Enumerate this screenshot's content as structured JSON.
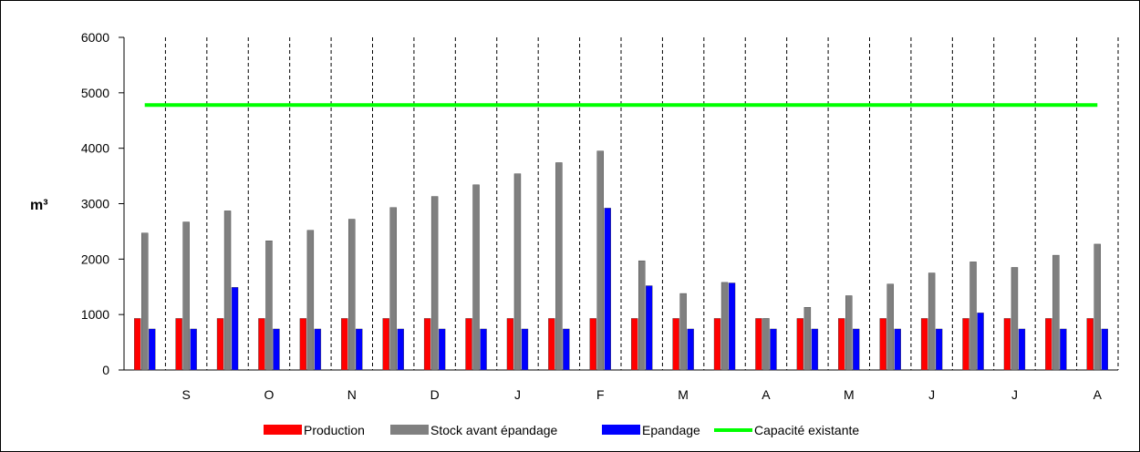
{
  "chart_data": {
    "type": "bar",
    "title": "",
    "xlabel": "",
    "ylabel": "m³",
    "ylim": [
      0,
      6000
    ],
    "yticks": [
      0,
      1000,
      2000,
      3000,
      4000,
      5000,
      6000
    ],
    "grid": "vertical dashed separators",
    "legend_position": "bottom",
    "slot_count": 24,
    "month_labels": [
      "S",
      "O",
      "N",
      "D",
      "J",
      "F",
      "M",
      "A",
      "M",
      "J",
      "J",
      "A"
    ],
    "series": [
      {
        "name": "Production",
        "type": "bar",
        "color": "#ff0000",
        "values": [
          930,
          930,
          930,
          930,
          930,
          930,
          930,
          930,
          930,
          930,
          930,
          930,
          930,
          930,
          930,
          930,
          930,
          930,
          930,
          930,
          930,
          930,
          930,
          930
        ]
      },
      {
        "name": "Stock avant épandage",
        "type": "bar",
        "color": "#808080",
        "values": [
          2470,
          2670,
          2870,
          2330,
          2520,
          2720,
          2930,
          3130,
          3340,
          3540,
          3740,
          3950,
          1970,
          1380,
          1580,
          930,
          1130,
          1340,
          1550,
          1750,
          1950,
          1850,
          2070,
          2270
        ]
      },
      {
        "name": "Epandage",
        "type": "bar",
        "color": "#0000ff",
        "values": [
          740,
          740,
          1490,
          740,
          740,
          740,
          740,
          740,
          740,
          740,
          740,
          2920,
          1520,
          740,
          1570,
          740,
          740,
          740,
          740,
          740,
          1030,
          740,
          740,
          740
        ]
      },
      {
        "name": "Capacité existante",
        "type": "line",
        "color": "#00ff00",
        "values": [
          4780,
          4780,
          4780,
          4780,
          4780,
          4780,
          4780,
          4780,
          4780,
          4780,
          4780,
          4780,
          4780,
          4780,
          4780,
          4780,
          4780,
          4780,
          4780,
          4780,
          4780,
          4780,
          4780,
          4780
        ]
      }
    ]
  }
}
